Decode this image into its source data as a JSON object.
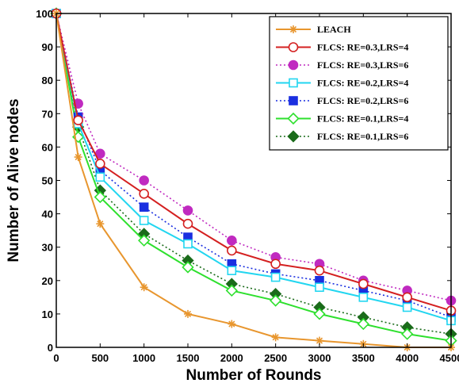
{
  "chart_data": {
    "type": "line",
    "title": "",
    "xlabel": "Number of Rounds",
    "ylabel": "Number of Alive nodes",
    "x": [
      0,
      250,
      500,
      1000,
      1500,
      2000,
      2500,
      3000,
      3500,
      4000,
      4500
    ],
    "xlim": [
      0,
      4500
    ],
    "ylim": [
      0,
      100
    ],
    "xticks": [
      0,
      500,
      1000,
      1500,
      2000,
      2500,
      3000,
      3500,
      4000,
      4500
    ],
    "yticks": [
      0,
      10,
      20,
      30,
      40,
      50,
      60,
      70,
      80,
      90,
      100
    ],
    "xtick_labels": [
      "0",
      "500",
      "1000",
      "1500",
      "2000",
      "2500",
      "3000",
      "3500",
      "4000",
      "4500"
    ],
    "ytick_labels": [
      "0",
      "10",
      "20",
      "30",
      "40",
      "50",
      "60",
      "70",
      "80",
      "90",
      "100"
    ],
    "grid": false,
    "legend_position": "top-right",
    "series": [
      {
        "name": "LEACH",
        "color": "#e8962e",
        "marker": "star",
        "dash": "solid",
        "values": [
          100,
          57,
          37,
          18,
          10,
          7,
          3,
          2,
          1,
          0,
          0
        ]
      },
      {
        "name": "FLCS: RE=0.3,LRS=4",
        "color": "#d42020",
        "marker": "circle-open",
        "dash": "solid",
        "values": [
          100,
          68,
          55,
          46,
          37,
          29,
          25,
          23,
          19,
          15,
          11
        ]
      },
      {
        "name": "FLCS: RE=0.3,LRS=6",
        "color": "#c02ac0",
        "marker": "circle-filled",
        "dash": "dotted",
        "values": [
          100,
          73,
          58,
          50,
          41,
          32,
          27,
          25,
          20,
          17,
          14
        ]
      },
      {
        "name": "FLCS: RE=0.2,LRS=4",
        "color": "#22d6f0",
        "marker": "square-open",
        "dash": "solid",
        "values": [
          100,
          67,
          51,
          38,
          31,
          23,
          21,
          18,
          15,
          12,
          8
        ]
      },
      {
        "name": "FLCS: RE=0.2,LRS=6",
        "color": "#1a2fe0",
        "marker": "square-filled",
        "dash": "dotted",
        "values": [
          100,
          69,
          53,
          42,
          33,
          25,
          22,
          20,
          17,
          14,
          9
        ]
      },
      {
        "name": "FLCS: RE=0.1,LRS=4",
        "color": "#2ee02e",
        "marker": "diamond-open",
        "dash": "solid",
        "values": [
          100,
          63,
          45,
          32,
          24,
          17,
          14,
          10,
          7,
          4,
          2
        ]
      },
      {
        "name": "FLCS: RE=0.1,LRS=6",
        "color": "#1a6b1a",
        "marker": "diamond-filled",
        "dash": "dotted",
        "values": [
          100,
          66,
          47,
          34,
          26,
          19,
          16,
          12,
          9,
          6,
          4
        ]
      }
    ]
  }
}
